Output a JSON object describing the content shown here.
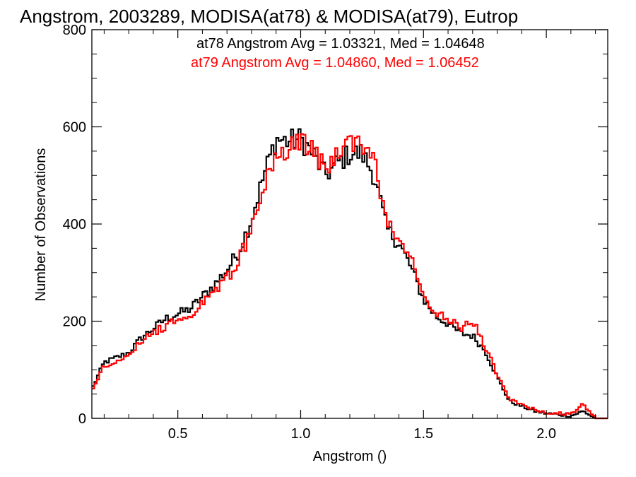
{
  "chart_data": {
    "type": "line",
    "title": "Angstrom, 2003289, MODISA(at78) & MODISA(at79), Eutrop",
    "xlabel": "Angstrom ()",
    "ylabel": "Number of Observations",
    "xlim": [
      0.15,
      2.25
    ],
    "ylim": [
      0,
      800
    ],
    "xticks": [
      0.5,
      1.0,
      1.5,
      2.0
    ],
    "xtick_labels": [
      "0.5",
      "1.0",
      "1.5",
      "2.0"
    ],
    "yticks": [
      0,
      200,
      400,
      600,
      800
    ],
    "ytick_labels": [
      "0",
      "200",
      "400",
      "600",
      "800"
    ],
    "grid": false,
    "annotations": [
      {
        "text": "at78 Angstrom Avg = 1.03321, Med = 1.04648",
        "color": "#000000"
      },
      {
        "text": "at79 Angstrom Avg = 1.04860, Med = 1.06452",
        "color": "#ff0000"
      }
    ],
    "series": [
      {
        "color": "#000000",
        "x": [
          0.15,
          0.2,
          0.25,
          0.3,
          0.35,
          0.4,
          0.45,
          0.5,
          0.55,
          0.6,
          0.65,
          0.7,
          0.75,
          0.8,
          0.85,
          0.9,
          0.95,
          1.0,
          1.05,
          1.1,
          1.15,
          1.2,
          1.25,
          1.3,
          1.35,
          1.4,
          1.45,
          1.5,
          1.55,
          1.6,
          1.65,
          1.7,
          1.75,
          1.8,
          1.85,
          1.9,
          1.95,
          2.0,
          2.05,
          2.1,
          2.15,
          2.2,
          2.25
        ],
        "values": [
          60,
          115,
          125,
          135,
          165,
          185,
          205,
          215,
          225,
          250,
          275,
          305,
          345,
          410,
          500,
          575,
          570,
          575,
          545,
          500,
          525,
          545,
          545,
          500,
          390,
          360,
          310,
          245,
          210,
          195,
          175,
          170,
          140,
          85,
          35,
          25,
          15,
          10,
          8,
          5,
          15,
          0,
          0
        ]
      },
      {
        "color": "#ff0000",
        "x": [
          0.15,
          0.2,
          0.25,
          0.3,
          0.35,
          0.4,
          0.45,
          0.5,
          0.55,
          0.6,
          0.65,
          0.7,
          0.75,
          0.8,
          0.85,
          0.9,
          0.95,
          1.0,
          1.05,
          1.1,
          1.15,
          1.2,
          1.25,
          1.3,
          1.35,
          1.4,
          1.45,
          1.5,
          1.55,
          1.6,
          1.65,
          1.7,
          1.75,
          1.8,
          1.85,
          1.9,
          1.95,
          2.0,
          2.05,
          2.1,
          2.15,
          2.2,
          2.25
        ],
        "values": [
          55,
          110,
          115,
          125,
          160,
          175,
          190,
          205,
          215,
          240,
          260,
          290,
          325,
          390,
          470,
          540,
          560,
          570,
          555,
          520,
          540,
          565,
          570,
          525,
          410,
          375,
          325,
          255,
          220,
          205,
          185,
          200,
          150,
          90,
          40,
          28,
          18,
          12,
          10,
          8,
          30,
          0,
          0
        ]
      }
    ]
  }
}
